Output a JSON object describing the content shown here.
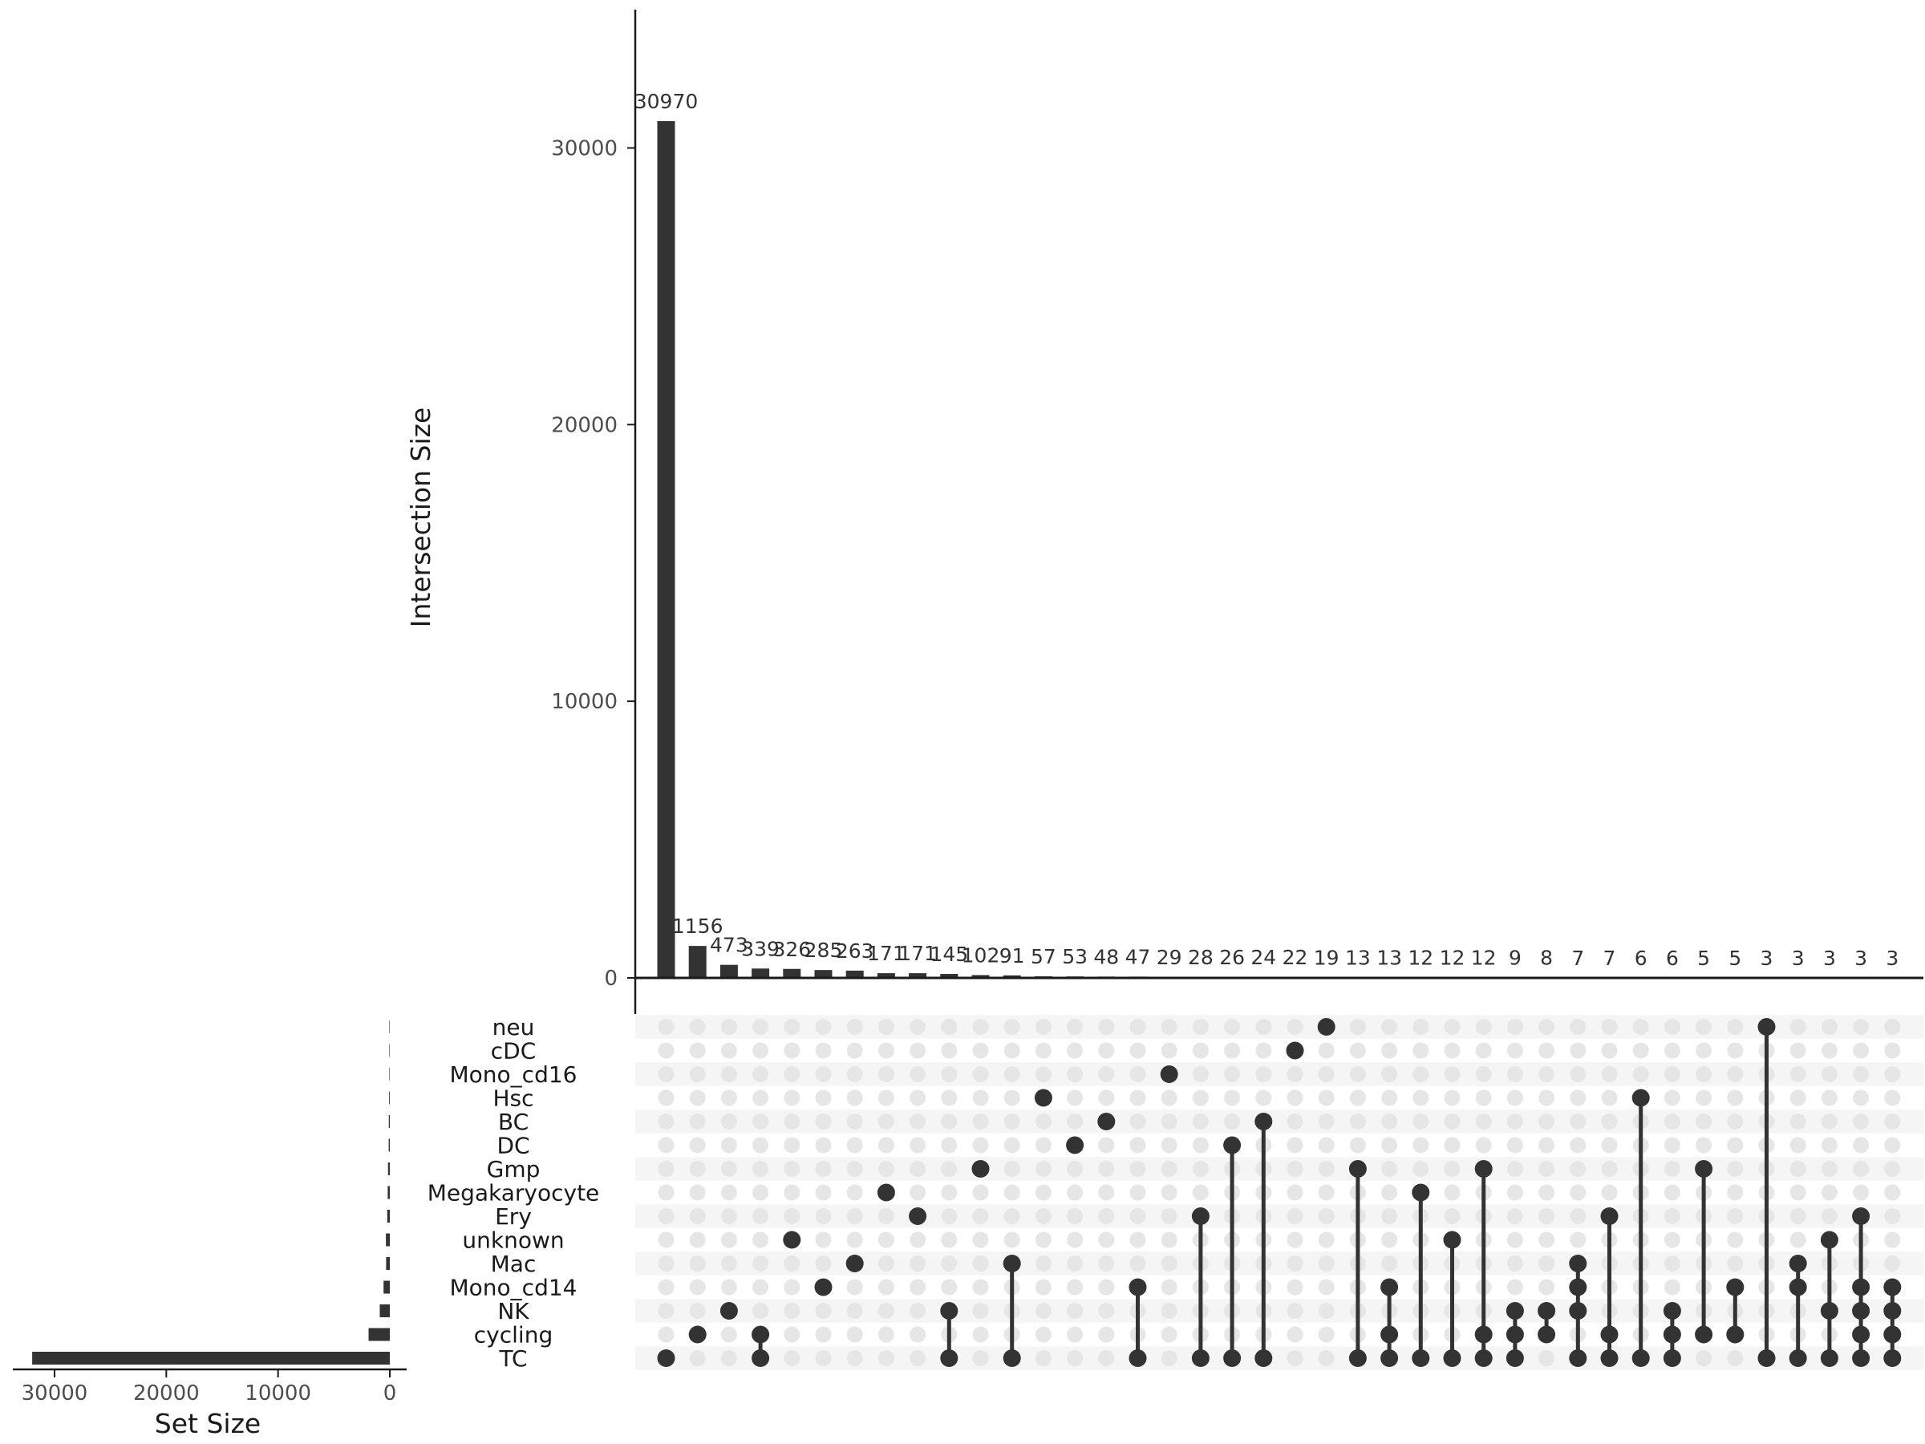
{
  "chart_data": {
    "type": "upset",
    "intersection_axis": {
      "title": "Intersection Size",
      "ylim": [
        0,
        35000
      ],
      "ticks": [
        0,
        10000,
        20000,
        30000
      ],
      "tick_labels": [
        "0",
        "10000",
        "20000",
        "30000"
      ]
    },
    "set_size_axis": {
      "title": "Set Size",
      "xlim": [
        0,
        32500
      ],
      "reversed": true,
      "ticks": [
        30000,
        20000,
        10000,
        0
      ],
      "tick_labels": [
        "30000",
        "20000",
        "10000",
        "0"
      ]
    },
    "sets": [
      "neu",
      "cDC",
      "Mono_cd16",
      "Hsc",
      "BC",
      "DC",
      "Gmp",
      "Megakaryocyte",
      "Ery",
      "unknown",
      "Mac",
      "Mono_cd14",
      "NK",
      "cycling",
      "TC"
    ],
    "set_sizes": [
      40,
      40,
      40,
      60,
      90,
      100,
      160,
      190,
      230,
      350,
      330,
      560,
      900,
      1900,
      32000
    ],
    "intersections": [
      {
        "sets": [
          "TC"
        ],
        "size": 30970
      },
      {
        "sets": [
          "cycling"
        ],
        "size": 1156
      },
      {
        "sets": [
          "NK"
        ],
        "size": 473
      },
      {
        "sets": [
          "cycling",
          "TC"
        ],
        "size": 339
      },
      {
        "sets": [
          "unknown"
        ],
        "size": 326
      },
      {
        "sets": [
          "Mono_cd14"
        ],
        "size": 285
      },
      {
        "sets": [
          "Mac"
        ],
        "size": 263
      },
      {
        "sets": [
          "Megakaryocyte"
        ],
        "size": 171
      },
      {
        "sets": [
          "Ery"
        ],
        "size": 171
      },
      {
        "sets": [
          "NK",
          "TC"
        ],
        "size": 145
      },
      {
        "sets": [
          "Gmp"
        ],
        "size": 102
      },
      {
        "sets": [
          "Mac",
          "TC"
        ],
        "size": 91
      },
      {
        "sets": [
          "Hsc"
        ],
        "size": 57
      },
      {
        "sets": [
          "DC"
        ],
        "size": 53
      },
      {
        "sets": [
          "BC"
        ],
        "size": 48
      },
      {
        "sets": [
          "Mono_cd14",
          "TC"
        ],
        "size": 47
      },
      {
        "sets": [
          "Mono_cd16"
        ],
        "size": 29
      },
      {
        "sets": [
          "Ery",
          "TC"
        ],
        "size": 28
      },
      {
        "sets": [
          "DC",
          "TC"
        ],
        "size": 26
      },
      {
        "sets": [
          "BC",
          "TC"
        ],
        "size": 24
      },
      {
        "sets": [
          "cDC"
        ],
        "size": 22
      },
      {
        "sets": [
          "neu"
        ],
        "size": 19
      },
      {
        "sets": [
          "Gmp",
          "TC"
        ],
        "size": 13
      },
      {
        "sets": [
          "Mono_cd14",
          "cycling",
          "TC"
        ],
        "size": 13
      },
      {
        "sets": [
          "Megakaryocyte",
          "TC"
        ],
        "size": 12
      },
      {
        "sets": [
          "unknown",
          "TC"
        ],
        "size": 12
      },
      {
        "sets": [
          "Gmp",
          "cycling",
          "TC"
        ],
        "size": 12
      },
      {
        "sets": [
          "NK",
          "cycling",
          "TC"
        ],
        "size": 9
      },
      {
        "sets": [
          "NK",
          "cycling"
        ],
        "size": 8
      },
      {
        "sets": [
          "Mac",
          "Mono_cd14",
          "NK",
          "TC"
        ],
        "size": 7
      },
      {
        "sets": [
          "Ery",
          "cycling",
          "TC"
        ],
        "size": 7
      },
      {
        "sets": [
          "Hsc",
          "TC"
        ],
        "size": 6
      },
      {
        "sets": [
          "NK",
          "cycling",
          "TC"
        ],
        "size": 6
      },
      {
        "sets": [
          "Gmp",
          "cycling"
        ],
        "size": 5
      },
      {
        "sets": [
          "Mono_cd14",
          "cycling"
        ],
        "size": 5
      },
      {
        "sets": [
          "neu",
          "TC"
        ],
        "size": 3
      },
      {
        "sets": [
          "Mac",
          "Mono_cd14",
          "TC"
        ],
        "size": 3
      },
      {
        "sets": [
          "unknown",
          "NK",
          "TC"
        ],
        "size": 3
      },
      {
        "sets": [
          "Ery",
          "Mono_cd14",
          "NK",
          "cycling",
          "TC"
        ],
        "size": 3
      },
      {
        "sets": [
          "Mono_cd14",
          "NK",
          "cycling",
          "TC"
        ],
        "size": 3
      }
    ],
    "colors": {
      "bar": "#333333",
      "dot_active": "#333333",
      "dot_inactive": "#e6e6e6",
      "stripe": "#f5f5f5",
      "axis": "#1a1a1a",
      "tick_text": "#4d4d4d"
    }
  }
}
